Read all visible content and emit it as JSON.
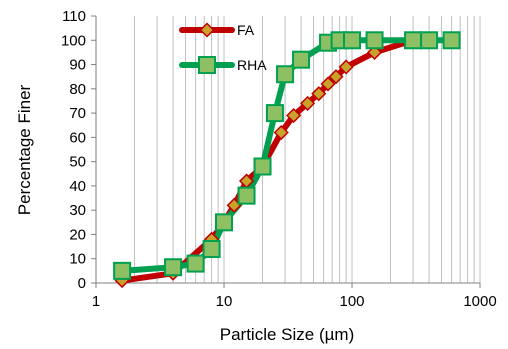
{
  "chart_data": {
    "type": "scatter",
    "xscale": "log",
    "xlim": [
      1,
      1000
    ],
    "ylim": [
      0,
      110
    ],
    "grid": "vertical-minor-and-major",
    "xlabel": "Particle Size (µm)",
    "ylabel": "Percentage Finer",
    "xticks": [
      "1",
      "10",
      "100",
      "1000"
    ],
    "yticks": [
      "0",
      "10",
      "20",
      "30",
      "40",
      "50",
      "60",
      "70",
      "80",
      "90",
      "100",
      "110"
    ],
    "legend_position": "top-center",
    "series": [
      {
        "name": "FA",
        "color": "#c00000",
        "marker": "diamond",
        "marker_fill": "#c8a22a",
        "x": [
          1.6,
          4,
          8,
          10,
          12,
          15,
          20,
          28,
          35,
          45,
          55,
          65,
          75,
          90,
          150,
          300
        ],
        "y": [
          1,
          4,
          18,
          25,
          32,
          42,
          48,
          62,
          69,
          74,
          78,
          82,
          85,
          89,
          95,
          100
        ]
      },
      {
        "name": "RHA",
        "color": "#00a050",
        "marker": "square",
        "marker_fill": "#8cc063",
        "x": [
          1.6,
          4,
          6,
          8,
          10,
          15,
          20,
          25,
          30,
          40,
          65,
          80,
          100,
          150,
          300,
          400,
          600
        ],
        "y": [
          5,
          6.5,
          8,
          14,
          25,
          36,
          48,
          70,
          86,
          92,
          99,
          100,
          100,
          100,
          100,
          100,
          100
        ]
      }
    ]
  }
}
